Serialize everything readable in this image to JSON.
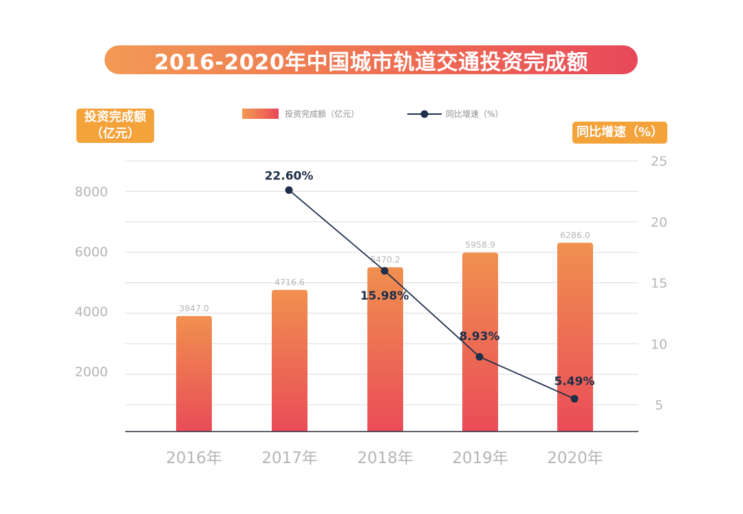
{
  "title": "2016-2020年中国城市轨道交通投资完成额",
  "left_axis_badge": [
    "投资完成额",
    "（亿元）"
  ],
  "right_axis_badge": "同比增速（%）",
  "legend": {
    "bar_label": "投资完成额（亿元）",
    "line_label": "同比增速（%）"
  },
  "colors": {
    "title_gradient_start": "#f29a55",
    "title_gradient_end": "#e8485a",
    "bar_top": "#f0904f",
    "bar_bottom": "#ea4c58",
    "line": "#1e2f4a",
    "badge": "#f4a23a",
    "grid": "#dcdcdc",
    "tick_text": "#b5b5b5"
  },
  "chart_data": {
    "type": "bar",
    "categories": [
      "2016年",
      "2017年",
      "2018年",
      "2019年",
      "2020年"
    ],
    "y_left": {
      "ticks": [
        2000,
        4000,
        6000,
        8000
      ],
      "range": [
        0,
        9000
      ]
    },
    "y_right": {
      "ticks": [
        5,
        10,
        15,
        20,
        25
      ],
      "range": [
        2,
        25
      ]
    },
    "grid": true,
    "series": [
      {
        "name": "投资完成额（亿元）",
        "type": "bar",
        "axis": "left",
        "values": [
          3847.0,
          4716.6,
          5470.2,
          5958.9,
          6286.0
        ],
        "labels": [
          "3847.0",
          "4716.6",
          "5470.2",
          "5958.9",
          "6286.0"
        ]
      },
      {
        "name": "同比增速（%）",
        "type": "line",
        "axis": "right",
        "values": [
          null,
          22.6,
          15.98,
          8.93,
          5.49
        ],
        "labels": [
          "",
          "22.60%",
          "15.98%",
          "8.93%",
          "5.49%"
        ]
      }
    ]
  }
}
